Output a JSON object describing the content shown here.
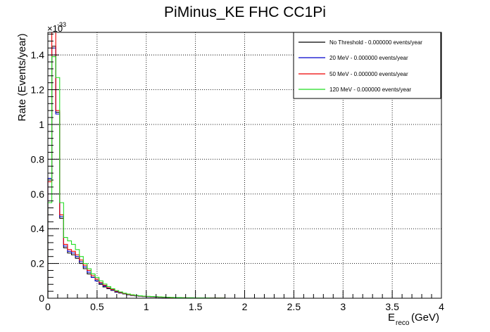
{
  "chart_data": {
    "type": "step-histogram",
    "title": "PiMinus_KE FHC CC1Pi",
    "xlabel_main": "E",
    "xlabel_sub": "reco",
    "xlabel_unit": " (GeV)",
    "ylabel": "Rate (Events/year)",
    "y_exponent_base": "×10",
    "y_exponent_power": "-33",
    "xlim": [
      0,
      4
    ],
    "ylim": [
      0,
      1.53
    ],
    "grid": true,
    "legend_position": "top-right",
    "x_ticks": [
      {
        "value": 0,
        "label": "0"
      },
      {
        "value": 0.5,
        "label": "0.5"
      },
      {
        "value": 1,
        "label": "1"
      },
      {
        "value": 1.5,
        "label": "1.5"
      },
      {
        "value": 2,
        "label": "2"
      },
      {
        "value": 2.5,
        "label": "2.5"
      },
      {
        "value": 3,
        "label": "3"
      },
      {
        "value": 3.5,
        "label": "3.5"
      },
      {
        "value": 4,
        "label": "4"
      }
    ],
    "y_ticks": [
      {
        "value": 0,
        "label": "0"
      },
      {
        "value": 0.2,
        "label": "0.2"
      },
      {
        "value": 0.4,
        "label": "0.4"
      },
      {
        "value": 0.6,
        "label": "0.6"
      },
      {
        "value": 0.8,
        "label": "0.8"
      },
      {
        "value": 1.0,
        "label": "1"
      },
      {
        "value": 1.2,
        "label": "1.2"
      },
      {
        "value": 1.4,
        "label": "1.4"
      }
    ],
    "bin_width": 0.04,
    "series": [
      {
        "name": "No Threshold - 0.000000 events/year",
        "color": "#000000",
        "values": [
          0.69,
          1.45,
          1.07,
          0.46,
          0.29,
          0.26,
          0.25,
          0.23,
          0.2,
          0.17,
          0.14,
          0.12,
          0.1,
          0.08,
          0.065,
          0.055,
          0.045,
          0.035,
          0.03,
          0.025,
          0.02,
          0.016,
          0.014,
          0.012,
          0.01,
          0.009,
          0.008,
          0.007,
          0.006,
          0.005,
          0.004,
          0.004,
          0.003,
          0.003,
          0.002,
          0.002,
          0.002,
          0.001,
          0.001,
          0.001,
          0.001,
          0.001,
          0.001,
          0.001,
          0.001
        ]
      },
      {
        "name": "20 MeV - 0.000000 events/year",
        "color": "#0000cc",
        "values": [
          0.69,
          1.44,
          1.06,
          0.47,
          0.3,
          0.27,
          0.26,
          0.24,
          0.21,
          0.18,
          0.15,
          0.12,
          0.1,
          0.085,
          0.07,
          0.058,
          0.047,
          0.037,
          0.031,
          0.026,
          0.021,
          0.017,
          0.014,
          0.012,
          0.01,
          0.009,
          0.008,
          0.007,
          0.006,
          0.005,
          0.004,
          0.004,
          0.003,
          0.003,
          0.002,
          0.002,
          0.002,
          0.001,
          0.001,
          0.001,
          0.001,
          0.001,
          0.001,
          0.001,
          0.001
        ]
      },
      {
        "name": "50 MeV - 0.000000 events/year",
        "color": "#ee0000",
        "values": [
          0.67,
          1.53,
          1.08,
          0.48,
          0.31,
          0.28,
          0.27,
          0.25,
          0.22,
          0.19,
          0.16,
          0.13,
          0.11,
          0.09,
          0.075,
          0.06,
          0.05,
          0.04,
          0.033,
          0.027,
          0.022,
          0.018,
          0.015,
          0.013,
          0.011,
          0.01,
          0.009,
          0.008,
          0.007,
          0.006,
          0.005,
          0.004,
          0.004,
          0.003,
          0.003,
          0.002,
          0.002,
          0.002,
          0.002,
          0.001,
          0.001,
          0.001,
          0.001,
          0.001,
          0.001
        ]
      },
      {
        "name": "120 MeV - 0.000000 events/year",
        "color": "#22dd22",
        "values": [
          0.55,
          1.39,
          1.27,
          0.55,
          0.35,
          0.33,
          0.31,
          0.28,
          0.24,
          0.2,
          0.17,
          0.14,
          0.12,
          0.1,
          0.082,
          0.067,
          0.055,
          0.044,
          0.036,
          0.029,
          0.024,
          0.02,
          0.016,
          0.014,
          0.012,
          0.011,
          0.01,
          0.009,
          0.008,
          0.007,
          0.006,
          0.005,
          0.004,
          0.004,
          0.003,
          0.003,
          0.003,
          0.002,
          0.002,
          0.002,
          0.002,
          0.001,
          0.001,
          0.001,
          0.001
        ]
      }
    ]
  }
}
